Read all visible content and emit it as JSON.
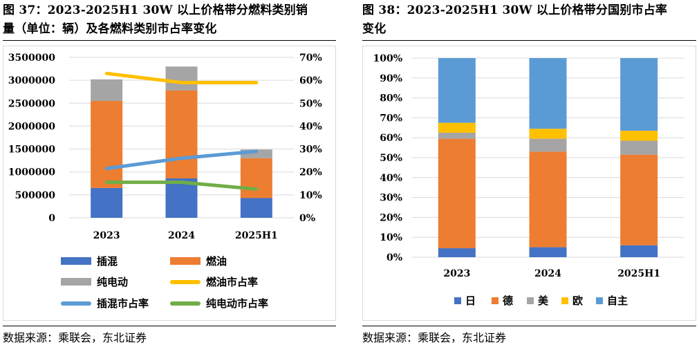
{
  "left": {
    "title_line1": "图 37：2023-2025H1 30W 以上价格带分燃料类别销",
    "title_line2": "量（单位：辆）及各燃料类别市占率变化",
    "source": "数据来源：乘联会，东北证券",
    "legend": [
      {
        "label": "插混",
        "kind": "bar",
        "color": "#4472C4"
      },
      {
        "label": "燃油",
        "kind": "bar",
        "color": "#ED7D31"
      },
      {
        "label": "纯电动",
        "kind": "bar",
        "color": "#A5A5A5"
      },
      {
        "label": "燃油市占率",
        "kind": "line",
        "color": "#FFC000"
      },
      {
        "label": "插混市占率",
        "kind": "line",
        "color": "#5B9BD5"
      },
      {
        "label": "纯电动市占率",
        "kind": "line",
        "color": "#70AD47"
      }
    ]
  },
  "right": {
    "title_line1": "图 38：2023-2025H1 30W 以上价格带分国别市占率",
    "title_line2": "变化",
    "source": "数据来源：乘联会，东北证券",
    "legend": [
      {
        "label": "日",
        "color": "#4472C4"
      },
      {
        "label": "德",
        "color": "#ED7D31"
      },
      {
        "label": "美",
        "color": "#A5A5A5"
      },
      {
        "label": "欧",
        "color": "#FFC000"
      },
      {
        "label": "自主",
        "color": "#5B9BD5"
      }
    ]
  },
  "chart_data": [
    {
      "type": "bar",
      "stacked": true,
      "title": "2023-2025H1 30W 以上价格带分燃料类别销量（单位：辆）及各燃料类别市占率变化",
      "categories": [
        "2023",
        "2024",
        "2025H1"
      ],
      "series": [
        {
          "name": "插混",
          "color": "#4472C4",
          "values": [
            650000,
            860000,
            430000
          ]
        },
        {
          "name": "燃油",
          "color": "#ED7D31",
          "values": [
            1900000,
            1920000,
            870000
          ]
        },
        {
          "name": "纯电动",
          "color": "#A5A5A5",
          "values": [
            470000,
            520000,
            190000
          ]
        }
      ],
      "line_series": [
        {
          "name": "燃油市占率",
          "color": "#FFC000",
          "values": [
            63,
            59,
            59
          ]
        },
        {
          "name": "插混市占率",
          "color": "#5B9BD5",
          "values": [
            21.5,
            26,
            29
          ]
        },
        {
          "name": "纯电动市占率",
          "color": "#70AD47",
          "values": [
            15.5,
            15.5,
            12.5
          ]
        }
      ],
      "ylim": [
        0,
        3500000
      ],
      "yticks": [
        "0",
        "500000",
        "1000000",
        "1500000",
        "2000000",
        "2500000",
        "3000000",
        "3500000"
      ],
      "y2lim": [
        0,
        70
      ],
      "y2ticks": [
        "0%",
        "10%",
        "20%",
        "30%",
        "40%",
        "50%",
        "60%",
        "70%"
      ],
      "legend_position": "bottom"
    },
    {
      "type": "bar",
      "stacked": true,
      "percent": true,
      "title": "2023-2025H1 30W 以上价格带分国别市占率变化",
      "categories": [
        "2023",
        "2024",
        "2025H1"
      ],
      "series": [
        {
          "name": "日",
          "color": "#4472C4",
          "values": [
            4.5,
            5,
            6
          ]
        },
        {
          "name": "德",
          "color": "#ED7D31",
          "values": [
            55,
            48,
            45.5
          ]
        },
        {
          "name": "美",
          "color": "#A5A5A5",
          "values": [
            3,
            6.5,
            7
          ]
        },
        {
          "name": "欧",
          "color": "#FFC000",
          "values": [
            5,
            5,
            5
          ]
        },
        {
          "name": "自主",
          "color": "#5B9BD5",
          "values": [
            32.5,
            35.5,
            36.5
          ]
        }
      ],
      "ylim": [
        0,
        100
      ],
      "yticks": [
        "0%",
        "10%",
        "20%",
        "30%",
        "40%",
        "50%",
        "60%",
        "70%",
        "80%",
        "90%",
        "100%"
      ],
      "legend_position": "bottom"
    }
  ]
}
